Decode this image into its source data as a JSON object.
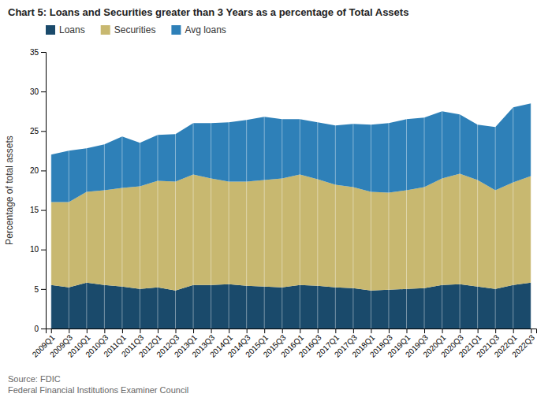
{
  "chart_data": {
    "type": "area",
    "stacked": true,
    "title": "Chart 5: Loans and Securities greater than 3 Years as a percentage of Total Assets",
    "ylabel": "Percentage of total assets",
    "categories": [
      "2009Q1",
      "2009Q3",
      "2010Q1",
      "2010Q3",
      "2011Q1",
      "2011Q3",
      "2012Q1",
      "2012Q3",
      "2013Q1",
      "2013Q3",
      "2014Q1",
      "2014Q3",
      "2015Q1",
      "2015Q3",
      "2016Q1",
      "2016Q3",
      "2017Q1",
      "2017Q3",
      "2018Q1",
      "2018Q3",
      "2019Q1",
      "2019Q3",
      "2020Q1",
      "2020Q3",
      "2021Q1",
      "2021Q3",
      "2022Q1",
      "2022Q3"
    ],
    "series": [
      {
        "name": "Loans",
        "color": "#1a4a6b",
        "values": [
          5.5,
          5.2,
          5.8,
          5.5,
          5.3,
          5.0,
          5.2,
          4.8,
          5.5,
          5.5,
          5.6,
          5.4,
          5.3,
          5.2,
          5.5,
          5.4,
          5.2,
          5.1,
          4.8,
          4.9,
          5.0,
          5.1,
          5.5,
          5.6,
          5.3,
          5.0,
          5.5,
          5.8
        ]
      },
      {
        "name": "Securities",
        "color": "#c8b870",
        "values": [
          10.5,
          10.8,
          11.5,
          12.0,
          12.5,
          13.0,
          13.5,
          13.8,
          14.0,
          13.5,
          13.0,
          13.2,
          13.5,
          13.8,
          14.0,
          13.5,
          13.0,
          12.8,
          12.5,
          12.3,
          12.5,
          12.8,
          13.5,
          14.0,
          13.5,
          12.5,
          13.0,
          13.5
        ]
      },
      {
        "name": "Avg loans",
        "color": "#2e80b8",
        "values": [
          6.0,
          6.5,
          5.5,
          5.8,
          6.5,
          5.5,
          5.8,
          6.0,
          6.5,
          7.0,
          7.5,
          7.8,
          8.0,
          7.5,
          7.0,
          7.2,
          7.5,
          8.0,
          8.5,
          8.8,
          9.0,
          8.8,
          8.5,
          7.5,
          7.0,
          8.0,
          9.5,
          9.2
        ]
      }
    ],
    "ylim": [
      0,
      35
    ],
    "yticks": [
      0,
      5,
      10,
      15,
      20,
      25,
      30,
      35
    ],
    "grid": true,
    "legend": "top",
    "annotations": [
      "Source: FDIC",
      "Federal Financial Institutions Examiner Council"
    ]
  }
}
